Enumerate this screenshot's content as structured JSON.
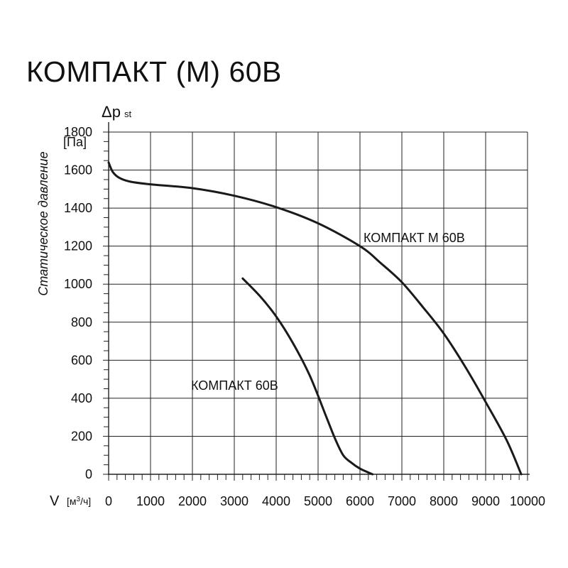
{
  "title": "КОМПАКТ (М) 60В",
  "chart_data": {
    "type": "line",
    "title": "КОМПАКТ (М) 60В",
    "ylabel": "Статическое давление",
    "y_symbol_main": "Δp",
    "y_symbol_sub": "st",
    "y_unit": "[Па]",
    "x_symbol": "V",
    "x_unit_open": "[м",
    "x_unit_sup": "3",
    "x_unit_close": "/ч]",
    "xlim": [
      0,
      10000
    ],
    "ylim": [
      0,
      1800
    ],
    "x_ticks": [
      0,
      1000,
      2000,
      3000,
      4000,
      5000,
      6000,
      7000,
      8000,
      9000,
      10000
    ],
    "x_tick_labels": [
      "0",
      "1000",
      "2000",
      "3000",
      "4000",
      "5000",
      "6000",
      "7000",
      "8000",
      "9000",
      "10000"
    ],
    "y_ticks": [
      0,
      200,
      400,
      600,
      800,
      1000,
      1200,
      1400,
      1600,
      1800
    ],
    "y_tick_labels": [
      "0",
      "200",
      "400",
      "600",
      "800",
      "1000",
      "1200",
      "1400",
      "1600",
      "1800"
    ],
    "grid": true,
    "series": [
      {
        "name": "КОМПАКТ М 60В",
        "x": [
          0,
          100,
          250,
          500,
          1000,
          2000,
          3000,
          4000,
          5000,
          6000,
          6500,
          7000,
          7500,
          8000,
          8500,
          9000,
          9500,
          9850
        ],
        "y": [
          1640,
          1590,
          1560,
          1540,
          1525,
          1505,
          1465,
          1405,
          1320,
          1200,
          1110,
          1010,
          880,
          740,
          570,
          380,
          180,
          0
        ]
      },
      {
        "name": "КОМПАКТ 60В",
        "x": [
          3200,
          3600,
          4000,
          4400,
          4800,
          5200,
          5400,
          5600,
          5800,
          6000,
          6300
        ],
        "y": [
          1030,
          940,
          830,
          690,
          520,
          300,
          190,
          100,
          60,
          30,
          0
        ]
      }
    ]
  }
}
